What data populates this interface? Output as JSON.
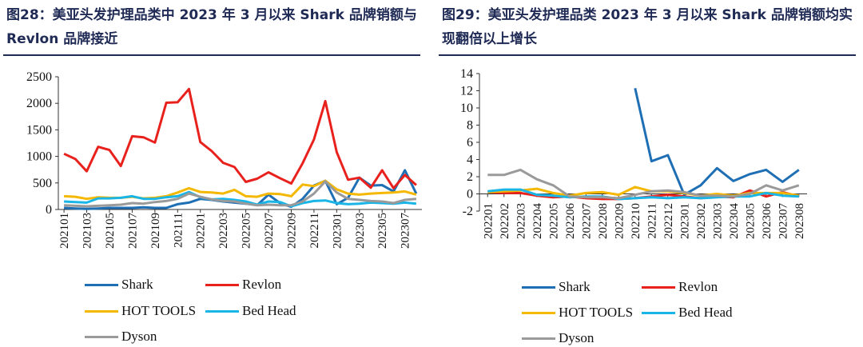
{
  "colors": {
    "shark": "#1f6fb5",
    "revlon": "#e8211d",
    "hot_tools": "#f5b800",
    "bed_head": "#19b5e6",
    "dyson": "#9a9a9a",
    "title": "#1f2a55"
  },
  "left": {
    "title": "图28：美亚头发护理品类中 2023 年 3 月以来 Shark 品牌销额与 Revlon 品牌接近",
    "legend": [
      {
        "name": "Shark",
        "color_key": "shark"
      },
      {
        "name": "Revlon",
        "color_key": "revlon"
      },
      {
        "name": "HOT TOOLS",
        "color_key": "hot_tools"
      },
      {
        "name": "Bed Head",
        "color_key": "bed_head"
      },
      {
        "name": "Dyson",
        "color_key": "dyson"
      }
    ]
  },
  "right": {
    "title": "图29：美亚头发护理品类 2023 年 3 月以来 Shark 品牌销额均实现翻倍以上增长",
    "legend": [
      {
        "name": "Shark",
        "color_key": "shark"
      },
      {
        "name": "Revlon",
        "color_key": "revlon"
      },
      {
        "name": "HOT TOOLS",
        "color_key": "hot_tools"
      },
      {
        "name": "Bed Head",
        "color_key": "bed_head"
      },
      {
        "name": "Dyson",
        "color_key": "dyson"
      }
    ]
  },
  "chart_data": [
    {
      "type": "line",
      "title": "美亚头发护理品类中 2023 年 3 月以来 Shark 品牌销额与 Revlon 品牌接近",
      "xlabel": "",
      "ylabel": "",
      "ylim": [
        0,
        2500
      ],
      "yticks": [
        0,
        500,
        1000,
        1500,
        2000,
        2500
      ],
      "categories": [
        "202101",
        "202102",
        "202103",
        "202104",
        "202105",
        "202106",
        "202107",
        "202108",
        "202109",
        "202110",
        "202111",
        "202112",
        "202201",
        "202202",
        "202203",
        "202204",
        "202205",
        "202206",
        "202207",
        "202208",
        "202209",
        "202210",
        "202211",
        "202212",
        "202301",
        "202302",
        "202303",
        "202304",
        "202305",
        "202306",
        "202307",
        "202308"
      ],
      "tick_labels": [
        "202101",
        "202103",
        "202105",
        "202107",
        "202109",
        "202111",
        "202201",
        "202203",
        "202205",
        "202207",
        "202209",
        "202211",
        "202301",
        "202303",
        "202305",
        "202307"
      ],
      "series": [
        {
          "name": "Shark",
          "color_key": "shark",
          "values": [
            30,
            20,
            10,
            20,
            30,
            30,
            30,
            40,
            30,
            30,
            100,
            130,
            200,
            180,
            150,
            130,
            110,
            80,
            280,
            120,
            50,
            200,
            450,
            540,
            100,
            220,
            600,
            450,
            460,
            340,
            740,
            300
          ]
        },
        {
          "name": "Revlon",
          "color_key": "revlon",
          "values": [
            1050,
            950,
            720,
            1180,
            1120,
            820,
            1380,
            1360,
            1260,
            2010,
            2020,
            2270,
            1270,
            1100,
            880,
            800,
            520,
            580,
            700,
            590,
            490,
            870,
            1320,
            2040,
            1080,
            560,
            600,
            410,
            740,
            400,
            650,
            460
          ]
        },
        {
          "name": "HOT TOOLS",
          "color_key": "hot_tools",
          "values": [
            250,
            240,
            200,
            230,
            220,
            220,
            240,
            210,
            220,
            250,
            320,
            400,
            330,
            320,
            300,
            370,
            250,
            240,
            300,
            290,
            250,
            470,
            440,
            540,
            380,
            300,
            280,
            300,
            310,
            320,
            340,
            280
          ]
        },
        {
          "name": "Bed Head",
          "color_key": "bed_head",
          "values": [
            150,
            140,
            130,
            210,
            210,
            220,
            250,
            200,
            200,
            230,
            250,
            330,
            230,
            190,
            200,
            180,
            150,
            90,
            150,
            140,
            60,
            120,
            160,
            170,
            120,
            100,
            110,
            130,
            120,
            110,
            130,
            110
          ]
        },
        {
          "name": "Dyson",
          "color_key": "dyson",
          "values": [
            80,
            70,
            60,
            70,
            80,
            90,
            120,
            110,
            140,
            160,
            200,
            300,
            240,
            190,
            160,
            150,
            110,
            80,
            90,
            80,
            80,
            150,
            300,
            530,
            320,
            200,
            180,
            160,
            150,
            120,
            180,
            200
          ]
        }
      ]
    },
    {
      "type": "line",
      "title": "美亚头发护理品类 2023 年 3 月以来 Shark 品牌销额均实现翻倍以上增长",
      "xlabel": "",
      "ylabel": "",
      "ylim": [
        -2,
        14
      ],
      "yticks": [
        -2,
        0,
        2,
        4,
        6,
        8,
        10,
        12,
        14
      ],
      "categories": [
        "202201",
        "202202",
        "202203",
        "202204",
        "202205",
        "202206",
        "202207",
        "202208",
        "202209",
        "202210",
        "202211",
        "202212",
        "202301",
        "202302",
        "202303",
        "202304",
        "202305",
        "202306",
        "202307",
        "202308"
      ],
      "tick_labels": [
        "202201",
        "202202",
        "202203",
        "202204",
        "202205",
        "202206",
        "202207",
        "202208",
        "202209",
        "202210",
        "202211",
        "202212",
        "202301",
        "202302",
        "202303",
        "202304",
        "202305",
        "202306",
        "202307",
        "202308"
      ],
      "series": [
        {
          "name": "Shark",
          "color_key": "shark",
          "values": [
            null,
            null,
            null,
            null,
            null,
            null,
            null,
            null,
            null,
            12.3,
            3.8,
            4.5,
            -0.1,
            1.0,
            3.0,
            1.5,
            2.3,
            2.8,
            1.4,
            2.8
          ]
        },
        {
          "name": "Revlon",
          "color_key": "revlon",
          "values": [
            0.2,
            0.1,
            0.1,
            -0.2,
            -0.4,
            -0.3,
            -0.5,
            -0.6,
            -0.6,
            -0.5,
            -0.3,
            -0.1,
            -0.3,
            -0.5,
            -0.3,
            -0.4,
            0.4,
            -0.3,
            0.2,
            -0.3
          ]
        },
        {
          "name": "HOT TOOLS",
          "color_key": "hot_tools",
          "values": [
            0.2,
            0.3,
            0.4,
            0.6,
            0.1,
            -0.2,
            0.1,
            0.2,
            -0.1,
            0.8,
            0.3,
            0.3,
            0.1,
            -0.2,
            0.0,
            -0.2,
            0.1,
            0.1,
            0.1,
            -0.2
          ]
        },
        {
          "name": "Bed Head",
          "color_key": "bed_head",
          "values": [
            0.3,
            0.5,
            0.5,
            -0.1,
            -0.2,
            -0.4,
            -0.3,
            -0.3,
            -0.6,
            -0.5,
            -0.4,
            -0.5,
            -0.4,
            -0.5,
            -0.4,
            -0.3,
            -0.3,
            0.1,
            -0.2,
            -0.3
          ]
        },
        {
          "name": "Dyson",
          "color_key": "dyson",
          "values": [
            2.2,
            2.2,
            2.8,
            1.7,
            1.0,
            -0.3,
            -0.4,
            -0.4,
            -0.5,
            -0.1,
            0.3,
            0.4,
            0.2,
            -0.2,
            -0.2,
            -0.3,
            0.0,
            1.0,
            0.4,
            1.0
          ]
        }
      ]
    }
  ]
}
